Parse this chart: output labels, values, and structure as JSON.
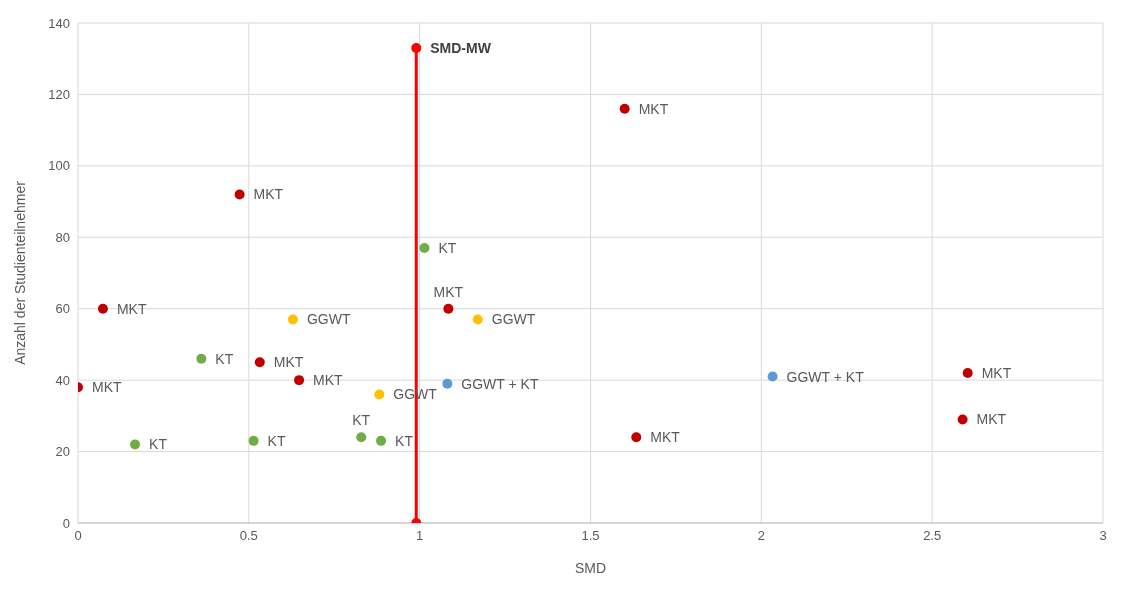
{
  "chart_data": {
    "type": "scatter",
    "xlabel": "SMD",
    "ylabel": "Anzahl der Studienteilnehmer",
    "xlim": [
      0,
      3
    ],
    "xticks": [
      0,
      0.5,
      1,
      1.5,
      2,
      2.5,
      3
    ],
    "ylim": [
      0,
      140
    ],
    "yticks": [
      0,
      20,
      40,
      60,
      80,
      100,
      120,
      140
    ],
    "grid": true,
    "legend": false,
    "marker": "circle",
    "series": [
      {
        "name": "MKT",
        "color": "#c00000",
        "x": [
          0.473,
          0.073,
          0,
          0.532,
          0.647,
          1.084,
          1.6,
          1.634,
          2.604,
          2.589
        ],
        "values": [
          92,
          60,
          38,
          45,
          40,
          60,
          116,
          24,
          42,
          29
        ]
      },
      {
        "name": "KT",
        "color": "#70ad47",
        "x": [
          1.014,
          0.361,
          0.167,
          0.514,
          0.829,
          0.887
        ],
        "values": [
          77,
          46,
          22,
          23,
          24,
          23
        ]
      },
      {
        "name": "GGWT",
        "color": "#ffc000",
        "x": [
          0.629,
          1.17,
          0.882
        ],
        "values": [
          57,
          57,
          36
        ]
      },
      {
        "name": "GGWT + KT",
        "color": "#5b9bd5",
        "x": [
          1.081,
          2.033
        ],
        "values": [
          39,
          41
        ]
      },
      {
        "name": "SMD-MW",
        "type": "line",
        "color": "#ff0000",
        "x": [
          0.99,
          0.99
        ],
        "values": [
          0,
          133
        ]
      }
    ]
  }
}
